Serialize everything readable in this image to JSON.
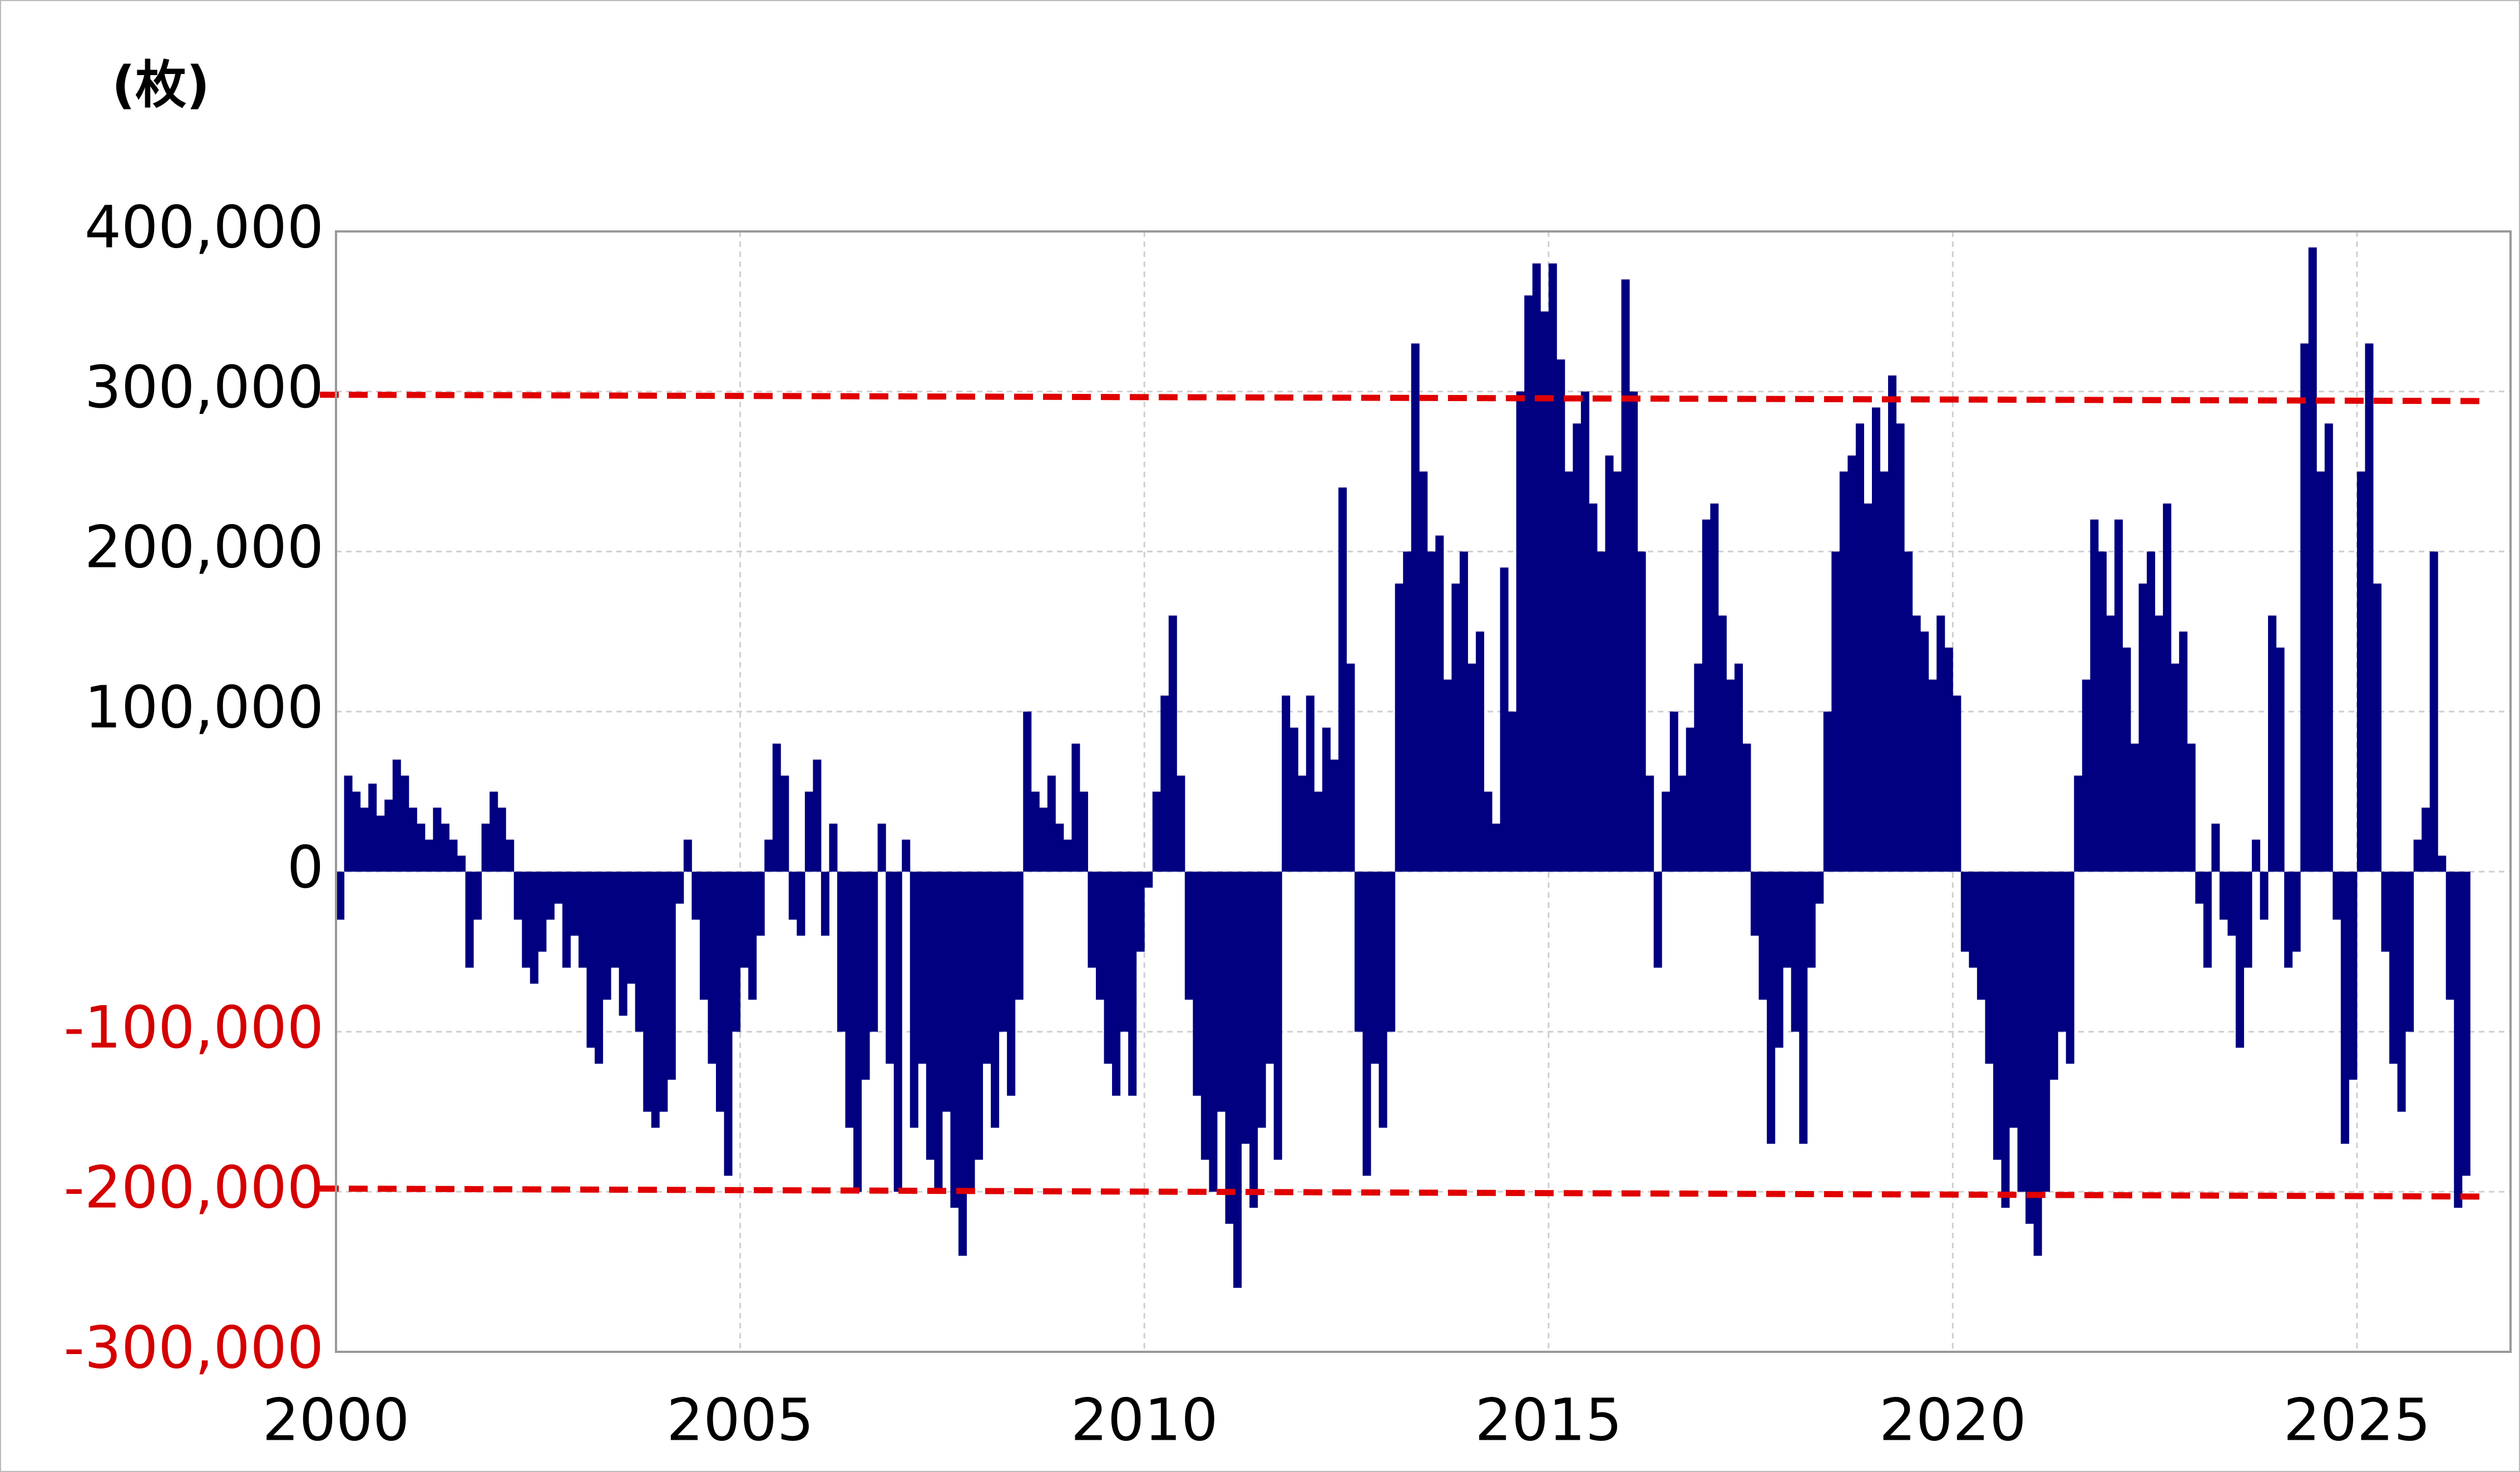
{
  "chart_data": {
    "type": "bar",
    "y_axis_label": "(枚)",
    "xlim": [
      2000,
      2026.9
    ],
    "ylim": [
      -300000,
      400000
    ],
    "xticks": [
      2000,
      2005,
      2010,
      2015,
      2020,
      2025
    ],
    "yticks": [
      {
        "value": -300000,
        "label": "-300,000"
      },
      {
        "value": -200000,
        "label": "-200,000"
      },
      {
        "value": -100000,
        "label": "-100,000"
      },
      0,
      {
        "value": 100000,
        "label": "100,000"
      },
      {
        "value": 200000,
        "label": "200,000"
      },
      {
        "value": 300000,
        "label": "300,000"
      },
      {
        "value": 400000,
        "label": "400,000"
      }
    ],
    "grid": true,
    "negative_tick_color": "#d40000",
    "x": [
      2000,
      2000.1,
      2000.2,
      2000.3,
      2000.4,
      2000.5,
      2000.6,
      2000.7,
      2000.8,
      2000.9,
      2001,
      2001.1,
      2001.2,
      2001.3,
      2001.4,
      2001.5,
      2001.6,
      2001.7,
      2001.8,
      2001.9,
      2002,
      2002.1,
      2002.2,
      2002.3,
      2002.4,
      2002.5,
      2002.6,
      2002.7,
      2002.8,
      2002.9,
      2003,
      2003.1,
      2003.2,
      2003.3,
      2003.4,
      2003.5,
      2003.6,
      2003.7,
      2003.8,
      2003.9,
      2004,
      2004.1,
      2004.2,
      2004.3,
      2004.4,
      2004.5,
      2004.6,
      2004.7,
      2004.8,
      2004.9,
      2005,
      2005.1,
      2005.2,
      2005.3,
      2005.4,
      2005.5,
      2005.6,
      2005.7,
      2005.8,
      2005.9,
      2006,
      2006.1,
      2006.2,
      2006.3,
      2006.4,
      2006.5,
      2006.6,
      2006.7,
      2006.8,
      2006.9,
      2007,
      2007.1,
      2007.2,
      2007.3,
      2007.4,
      2007.5,
      2007.6,
      2007.7,
      2007.8,
      2007.9,
      2008,
      2008.1,
      2008.2,
      2008.3,
      2008.4,
      2008.5,
      2008.6,
      2008.7,
      2008.8,
      2008.9,
      2009,
      2009.1,
      2009.2,
      2009.3,
      2009.4,
      2009.5,
      2009.6,
      2009.7,
      2009.8,
      2009.9,
      2010,
      2010.1,
      2010.2,
      2010.3,
      2010.4,
      2010.5,
      2010.6,
      2010.7,
      2010.8,
      2010.9,
      2011,
      2011.1,
      2011.2,
      2011.3,
      2011.4,
      2011.5,
      2011.6,
      2011.7,
      2011.8,
      2011.9,
      2012,
      2012.1,
      2012.2,
      2012.3,
      2012.4,
      2012.5,
      2012.6,
      2012.7,
      2012.8,
      2012.9,
      2013,
      2013.1,
      2013.2,
      2013.3,
      2013.4,
      2013.5,
      2013.6,
      2013.7,
      2013.8,
      2013.9,
      2014,
      2014.1,
      2014.2,
      2014.3,
      2014.4,
      2014.5,
      2014.6,
      2014.7,
      2014.8,
      2014.9,
      2015,
      2015.1,
      2015.2,
      2015.3,
      2015.4,
      2015.5,
      2015.6,
      2015.7,
      2015.8,
      2015.9,
      2016,
      2016.1,
      2016.2,
      2016.3,
      2016.4,
      2016.5,
      2016.6,
      2016.7,
      2016.8,
      2016.9,
      2017,
      2017.1,
      2017.2,
      2017.3,
      2017.4,
      2017.5,
      2017.6,
      2017.7,
      2017.8,
      2017.9,
      2018,
      2018.1,
      2018.2,
      2018.3,
      2018.4,
      2018.5,
      2018.6,
      2018.7,
      2018.8,
      2018.9,
      2019,
      2019.1,
      2019.2,
      2019.3,
      2019.4,
      2019.5,
      2019.6,
      2019.7,
      2019.8,
      2019.9,
      2020,
      2020.1,
      2020.2,
      2020.3,
      2020.4,
      2020.5,
      2020.6,
      2020.7,
      2020.8,
      2020.9,
      2021,
      2021.1,
      2021.2,
      2021.3,
      2021.4,
      2021.5,
      2021.6,
      2021.7,
      2021.8,
      2021.9,
      2022,
      2022.1,
      2022.2,
      2022.3,
      2022.4,
      2022.5,
      2022.6,
      2022.7,
      2022.8,
      2022.9,
      2023,
      2023.1,
      2023.2,
      2023.3,
      2023.4,
      2023.5,
      2023.6,
      2023.7,
      2023.8,
      2023.9,
      2024,
      2024.1,
      2024.2,
      2024.3,
      2024.4,
      2024.5,
      2024.6,
      2024.7,
      2024.8,
      2024.9,
      2025,
      2025.1,
      2025.2,
      2025.3,
      2025.4,
      2025.5,
      2025.6,
      2025.7,
      2025.8,
      2025.9,
      2026,
      2026.1,
      2026.2,
      2026.3
    ],
    "series": [
      {
        "color": "#000080",
        "values": [
          -30000,
          60000,
          50000,
          40000,
          55000,
          35000,
          45000,
          70000,
          60000,
          40000,
          30000,
          20000,
          40000,
          30000,
          20000,
          10000,
          -60000,
          -30000,
          30000,
          50000,
          40000,
          20000,
          -30000,
          -60000,
          -70000,
          -50000,
          -30000,
          -20000,
          -60000,
          -40000,
          -60000,
          -110000,
          -120000,
          -80000,
          -60000,
          -90000,
          -70000,
          -100000,
          -150000,
          -160000,
          -150000,
          -130000,
          -20000,
          20000,
          -30000,
          -80000,
          -120000,
          -150000,
          -190000,
          -100000,
          -60000,
          -80000,
          -40000,
          20000,
          80000,
          60000,
          -30000,
          -40000,
          50000,
          70000,
          -40000,
          30000,
          -100000,
          -160000,
          -200000,
          -130000,
          -100000,
          30000,
          -120000,
          -200000,
          20000,
          -160000,
          -120000,
          -180000,
          -200000,
          -150000,
          -210000,
          -240000,
          -200000,
          -180000,
          -120000,
          -160000,
          -100000,
          -140000,
          -80000,
          100000,
          50000,
          40000,
          60000,
          30000,
          20000,
          80000,
          50000,
          -60000,
          -80000,
          -120000,
          -140000,
          -100000,
          -140000,
          -50000,
          -10000,
          50000,
          110000,
          160000,
          60000,
          -80000,
          -140000,
          -180000,
          -200000,
          -150000,
          -220000,
          -260000,
          -170000,
          -210000,
          -160000,
          -120000,
          -180000,
          110000,
          90000,
          60000,
          110000,
          50000,
          90000,
          70000,
          240000,
          130000,
          -100000,
          -190000,
          -120000,
          -160000,
          -100000,
          180000,
          200000,
          330000,
          250000,
          200000,
          210000,
          120000,
          180000,
          200000,
          130000,
          150000,
          50000,
          30000,
          190000,
          100000,
          300000,
          360000,
          380000,
          350000,
          380000,
          320000,
          250000,
          280000,
          300000,
          230000,
          200000,
          260000,
          250000,
          370000,
          300000,
          200000,
          60000,
          -60000,
          50000,
          100000,
          60000,
          90000,
          130000,
          220000,
          230000,
          160000,
          120000,
          130000,
          80000,
          -40000,
          -80000,
          -170000,
          -110000,
          -60000,
          -100000,
          -170000,
          -60000,
          -20000,
          100000,
          200000,
          250000,
          260000,
          280000,
          230000,
          290000,
          250000,
          310000,
          280000,
          200000,
          160000,
          150000,
          120000,
          160000,
          140000,
          110000,
          -50000,
          -60000,
          -80000,
          -120000,
          -180000,
          -210000,
          -160000,
          -200000,
          -220000,
          -240000,
          -200000,
          -130000,
          -100000,
          -120000,
          60000,
          120000,
          220000,
          200000,
          160000,
          220000,
          140000,
          80000,
          180000,
          200000,
          160000,
          230000,
          130000,
          150000,
          80000,
          -20000,
          -60000,
          30000,
          -30000,
          -40000,
          -110000,
          -60000,
          20000,
          -30000,
          160000,
          140000,
          -60000,
          -50000,
          330000,
          390000,
          250000,
          280000,
          -30000,
          -170000,
          -130000,
          250000,
          330000,
          180000,
          -50000,
          -120000,
          -150000,
          -100000,
          20000,
          40000,
          200000,
          10000,
          -80000,
          -210000,
          -190000
        ]
      }
    ],
    "reference_lines": [
      {
        "x": [
          1999.8,
          2026.6
        ],
        "values": [
          298000,
          294000
        ],
        "color": "#e00000"
      },
      {
        "x": [
          1999.8,
          2026.6
        ],
        "values": [
          -198000,
          -203000
        ],
        "color": "#e00000"
      }
    ]
  }
}
